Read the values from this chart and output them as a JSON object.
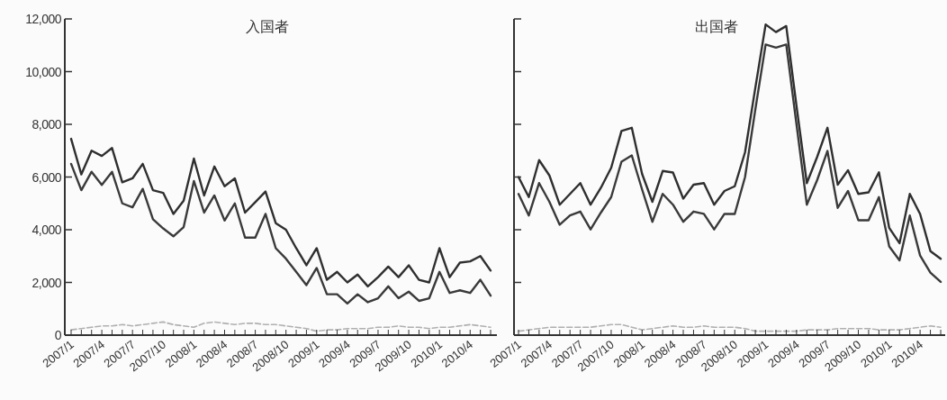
{
  "chart_data": [
    {
      "type": "line",
      "title": "入国者",
      "categories": [
        "2007/1",
        null,
        null,
        "2007/4",
        null,
        null,
        "2007/7",
        null,
        null,
        "2007/10",
        null,
        null,
        "2008/1",
        null,
        null,
        "2008/4",
        null,
        null,
        "2008/7",
        null,
        null,
        "2008/10",
        null,
        null,
        "2009/1",
        null,
        null,
        "2009/4",
        null,
        null,
        "2009/7",
        null,
        null,
        "2009/10",
        null,
        null,
        "2010/1",
        null,
        null,
        "2010/4",
        null,
        null
      ],
      "ylim": [
        0,
        12000
      ],
      "yticks": [
        0,
        {
          "value": 2000,
          "label": "2,000"
        },
        {
          "value": 4000,
          "label": "4,000"
        },
        {
          "value": 6000,
          "label": "6,000"
        },
        {
          "value": 8000,
          "label": "8,000"
        },
        {
          "value": 10000,
          "label": "10,000"
        },
        {
          "value": 12000,
          "label": "12,000"
        }
      ],
      "series": [
        {
          "color": "#2f2f2f",
          "line_style": "solid",
          "values": [
            7450,
            6100,
            7000,
            6800,
            7100,
            5800,
            5950,
            6500,
            5500,
            5400,
            4600,
            5100,
            6700,
            5300,
            6400,
            5650,
            5950,
            4650,
            5050,
            5450,
            4250,
            4000,
            3300,
            2650,
            3300,
            2100,
            2400,
            2000,
            2300,
            1850,
            2200,
            2600,
            2200,
            2650,
            2100,
            2000,
            3300,
            2200,
            2750,
            2800,
            3000,
            2450
          ]
        },
        {
          "color": "#3a3a3a",
          "line_style": "solid",
          "values": [
            6500,
            5500,
            6200,
            5700,
            6200,
            5000,
            4850,
            5550,
            4400,
            4050,
            3750,
            4100,
            5850,
            4650,
            5300,
            4350,
            5000,
            3700,
            3700,
            4600,
            3300,
            2900,
            2400,
            1900,
            2550,
            1550,
            1550,
            1200,
            1550,
            1250,
            1400,
            1850,
            1400,
            1650,
            1300,
            1400,
            2400,
            1600,
            1700,
            1600,
            2100,
            1500
          ]
        },
        {
          "color": "#b0b0b0",
          "line_style": "dashed",
          "values": [
            200,
            250,
            300,
            350,
            350,
            400,
            350,
            400,
            450,
            500,
            400,
            350,
            300,
            450,
            500,
            450,
            400,
            450,
            450,
            400,
            400,
            350,
            300,
            250,
            150,
            200,
            200,
            250,
            250,
            250,
            300,
            300,
            350,
            300,
            300,
            250,
            300,
            300,
            350,
            400,
            350,
            300
          ]
        }
      ]
    },
    {
      "type": "line",
      "title": "出国者",
      "tick_labels": "x",
      "categories": [
        "2007/1",
        null,
        null,
        "2007/4",
        null,
        null,
        "2007/7",
        null,
        null,
        "2007/10",
        null,
        null,
        "2008/1",
        null,
        null,
        "2008/4",
        null,
        null,
        "2008/7",
        null,
        null,
        "2008/10",
        null,
        null,
        "2009/1",
        null,
        null,
        "2009/4",
        null,
        null,
        "2009/7",
        null,
        null,
        "2009/10",
        null,
        null,
        "2010/1",
        null,
        null,
        "2010/4",
        null,
        null
      ],
      "ylim": [
        0,
        12000
      ],
      "yticks": [
        {
          "value": 0,
          "label": null
        },
        {
          "value": 2000,
          "label": null
        },
        {
          "value": 4000,
          "label": null
        },
        {
          "value": 6000,
          "label": null
        },
        {
          "value": 8000,
          "label": null
        },
        {
          "value": 10000,
          "label": null
        },
        {
          "value": 12000,
          "label": null
        }
      ],
      "series": [
        {
          "color": "#2f2f2f",
          "line_style": "solid",
          "values": [
            6000,
            5240,
            6640,
            6060,
            4950,
            5360,
            5770,
            4950,
            5590,
            6350,
            7750,
            7870,
            6120,
            5060,
            6230,
            6170,
            5180,
            5710,
            5770,
            4950,
            5470,
            5650,
            6940,
            9390,
            11790,
            11500,
            11730,
            8690,
            5770,
            6760,
            7870,
            5710,
            6260,
            5360,
            5420,
            6180,
            4070,
            3490,
            5360,
            4600,
            3190,
            2900
          ]
        },
        {
          "color": "#3a3a3a",
          "line_style": "solid",
          "values": [
            5360,
            4540,
            5770,
            5060,
            4190,
            4540,
            4690,
            4010,
            4650,
            5240,
            6580,
            6820,
            5530,
            4300,
            5360,
            4950,
            4300,
            4690,
            4600,
            4010,
            4600,
            4600,
            6000,
            8570,
            11030,
            10910,
            11030,
            7990,
            4950,
            5880,
            6990,
            4830,
            5470,
            4360,
            4360,
            5240,
            3370,
            2840,
            4540,
            3020,
            2370,
            2020
          ]
        },
        {
          "color": "#b0b0b0",
          "line_style": "dashed",
          "values": [
            150,
            200,
            250,
            300,
            300,
            300,
            300,
            300,
            350,
            400,
            400,
            300,
            200,
            250,
            300,
            350,
            300,
            300,
            350,
            300,
            300,
            300,
            250,
            150,
            150,
            150,
            150,
            150,
            200,
            200,
            200,
            250,
            250,
            250,
            250,
            200,
            200,
            200,
            250,
            300,
            350,
            300
          ]
        }
      ]
    }
  ]
}
